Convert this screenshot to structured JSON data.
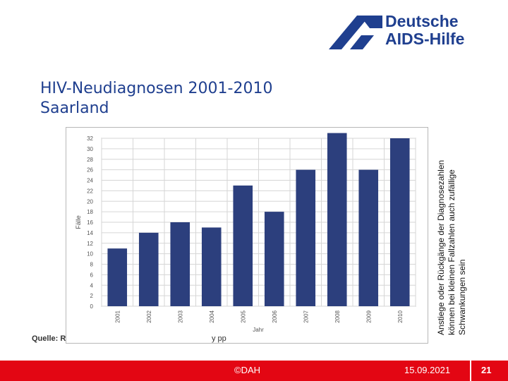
{
  "logo": {
    "line1": "Deutsche",
    "line2": "AIDS-Hilfe",
    "color": "#1f3f8f"
  },
  "title": {
    "line1": "HIV-Neudiagnosen 2001-2010",
    "line2": "Saarland"
  },
  "side_note": "Anstiege oder Rückgänge der Diagnosezahlen können bei kleinen Fallzahlen auch zufällige Schwankungen sein",
  "source_label": "Quelle: R",
  "source_tail": "y  pp",
  "footer": {
    "copyright": "©DAH",
    "date": "15.09.2021",
    "page": "21",
    "color": "#e30613"
  },
  "chart_data": {
    "type": "bar",
    "categories": [
      "2001",
      "2002",
      "2003",
      "2004",
      "2005",
      "2006",
      "2007",
      "2008",
      "2009",
      "2010"
    ],
    "values": [
      11,
      14,
      16,
      15,
      23,
      18,
      26,
      33,
      26,
      32
    ],
    "yticks": [
      "0",
      "2",
      "4",
      "6",
      "8",
      "10",
      "12",
      "14",
      "16",
      "18",
      "20",
      "22",
      "24",
      "26",
      "28",
      "30",
      "32"
    ],
    "ylim": [
      0,
      32
    ],
    "xlabel": "Jahr",
    "ylabel": "Fälle",
    "bar_color": "#2c3f7d",
    "grid": true
  }
}
